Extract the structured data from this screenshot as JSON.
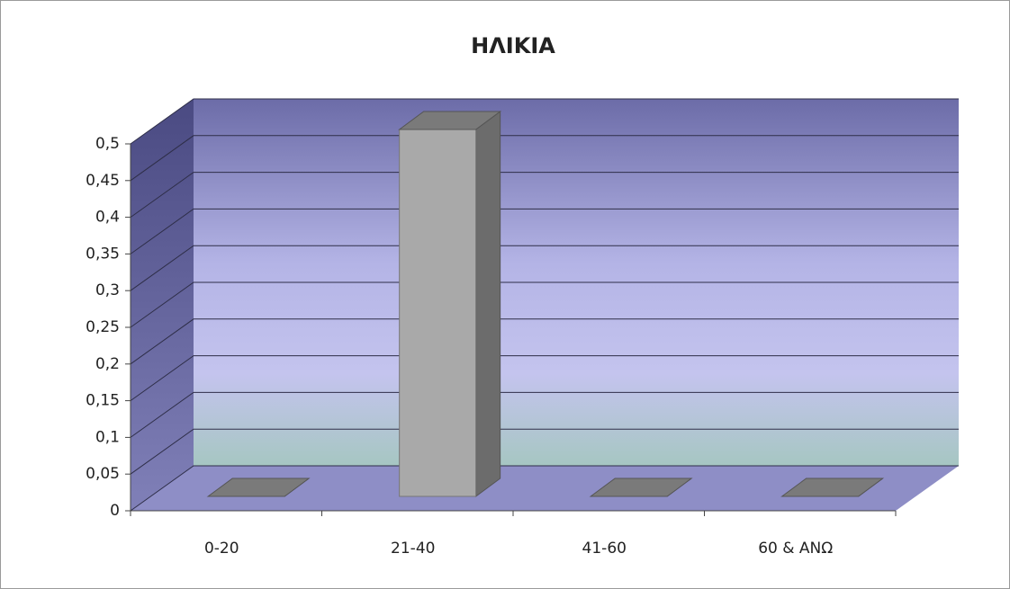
{
  "chart_data": {
    "type": "bar3d",
    "title": "ΗΛΙΚΙΑ",
    "categories": [
      "0-20",
      "21-40",
      "41-60",
      "60 & ΑΝΩ"
    ],
    "values": [
      0,
      0.5,
      0,
      0
    ],
    "color": "#a9a9a9",
    "ylim": [
      0,
      0.5
    ],
    "yticks": [
      0,
      {
        "value": 0.05,
        "label": "0,05"
      },
      {
        "value": 0.1,
        "label": "0,1"
      },
      {
        "value": 0.15,
        "label": "0,15"
      },
      {
        "value": 0.2,
        "label": "0,2"
      },
      {
        "value": 0.25,
        "label": "0,25"
      },
      {
        "value": 0.3,
        "label": "0,3"
      },
      {
        "value": 0.35,
        "label": "0,35"
      },
      {
        "value": 0.4,
        "label": "0,4"
      },
      {
        "value": 0.45,
        "label": "0,45"
      },
      {
        "value": 0.5,
        "label": "0,5"
      }
    ],
    "grid": true
  }
}
